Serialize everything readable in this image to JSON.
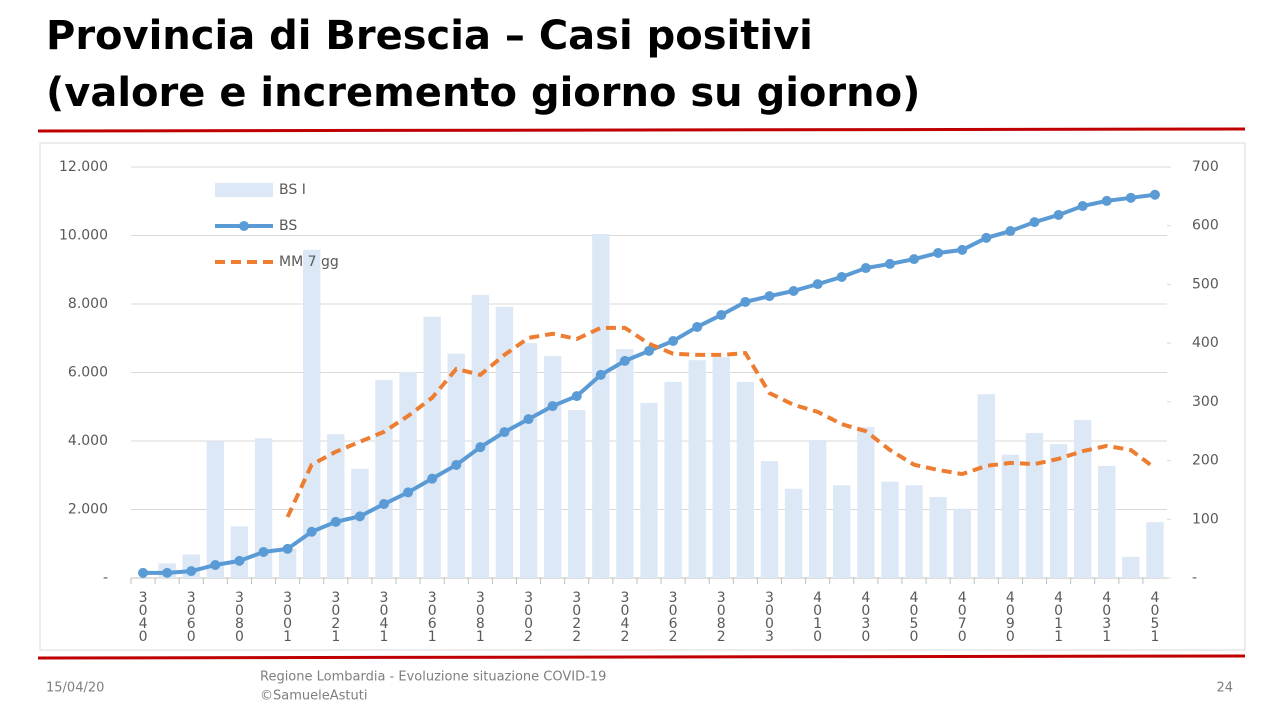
{
  "header": {
    "title_line1": "Provincia di Brescia – Casi positivi",
    "title_line2": "(valore e incremento giorno su giorno)"
  },
  "chart_data": {
    "type": "combo",
    "categories": [
      "3040",
      null,
      "3060",
      null,
      "3080",
      null,
      "3001",
      null,
      "3021",
      null,
      "3041",
      null,
      "3061",
      null,
      "3081",
      null,
      "3002",
      null,
      "3022",
      null,
      "3042",
      null,
      "3062",
      null,
      "3082",
      null,
      "3003",
      null,
      "4010",
      null,
      "4030",
      null,
      "4050",
      null,
      "4070",
      null,
      "4090",
      null,
      "4011",
      null,
      "4031",
      null,
      "4051"
    ],
    "series": [
      {
        "name": "BS I",
        "type": "bar",
        "axis": "y2",
        "color": "#dce8f5",
        "values": [
          0,
          25,
          40,
          233,
          88,
          238,
          50,
          559,
          245,
          186,
          337,
          351,
          445,
          382,
          482,
          462,
          400,
          378,
          286,
          586,
          390,
          298,
          334,
          371,
          376,
          334,
          199,
          152,
          235,
          158,
          257,
          164,
          158,
          138,
          118,
          313,
          210,
          247,
          228,
          269,
          191,
          36,
          95
        ]
      },
      {
        "name": "BS",
        "type": "line",
        "color": "#5b9bd5",
        "values": [
          150,
          150,
          200,
          380,
          500,
          760,
          850,
          1350,
          1640,
          1800,
          2160,
          2500,
          2900,
          3300,
          3820,
          4260,
          4640,
          5020,
          5310,
          5930,
          6340,
          6630,
          6920,
          7330,
          7680,
          8060,
          8230,
          8380,
          8580,
          8790,
          9050,
          9170,
          9310,
          9490,
          9580,
          9930,
          10130,
          10390,
          10600,
          10860,
          11010,
          11100,
          11190
        ]
      },
      {
        "name": "MM 7 gg",
        "type": "dashed-line",
        "axis": "y2",
        "color": "#ed7d31",
        "values": [
          null,
          null,
          null,
          null,
          null,
          null,
          104,
          193,
          215,
          232,
          249,
          276,
          307,
          356,
          346,
          380,
          409,
          416,
          407,
          426,
          426,
          399,
          382,
          380,
          380,
          383,
          315,
          295,
          283,
          262,
          250,
          218,
          193,
          184,
          177,
          191,
          196,
          194,
          203,
          216,
          225,
          218,
          187
        ]
      }
    ],
    "ylim": [
      0,
      12000
    ],
    "yticks": [
      {
        "value": 0,
        "label": "-"
      },
      {
        "value": 2000,
        "label": "2.000"
      },
      {
        "value": 4000,
        "label": "4.000"
      },
      {
        "value": 6000,
        "label": "6.000"
      },
      {
        "value": 8000,
        "label": "8.000"
      },
      {
        "value": 10000,
        "label": "10.000"
      },
      {
        "value": 12000,
        "label": "12.000"
      }
    ],
    "y2lim": [
      0,
      700
    ],
    "y2ticks": [
      {
        "value": 0,
        "label": "-"
      },
      100,
      200,
      300,
      400,
      500,
      600,
      700
    ],
    "grid": true,
    "legend": "upper-left"
  },
  "footer": {
    "date": "15/04/20",
    "source": "Regione Lombardia - Evoluzione situazione COVID-19",
    "author": "©SamueleAstuti",
    "page": "24"
  }
}
